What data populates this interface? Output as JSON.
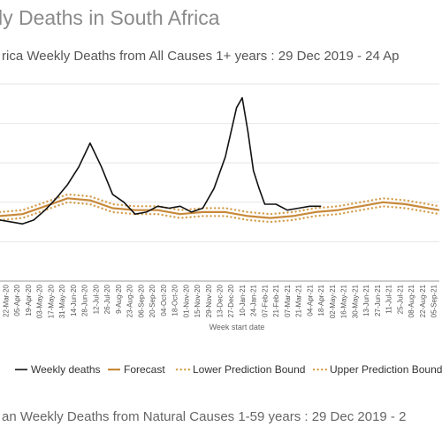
{
  "page": {
    "title": "ly Deaths in South Africa",
    "footer_subtitle": "an Weekly Deaths from Natural Causes 1-59 years : 29 Dec 2019 - 2"
  },
  "chart_data": {
    "type": "line",
    "title": "rica Weekly Deaths from All Causes 1+ years : 29 Dec 2019 - 24 Ap",
    "xlabel": "Week start date",
    "ylabel": "",
    "x_range": [
      "2020-03-15",
      "2021-09-12"
    ],
    "ylim": [
      0,
      1
    ],
    "grid": true,
    "legend_position": "bottom",
    "colors": {
      "weekly": "#111111",
      "forecast": "#c8893a",
      "bounds": "#d4a050",
      "grid": "#e6e6e6",
      "axis": "#999999"
    },
    "tick_labels": [
      "22-Mar-20",
      "05-Apr-20",
      "19-Apr-20",
      "03-May-20",
      "17-May-20",
      "31-May-20",
      "14-Jun-20",
      "28-Jun-20",
      "12-Jul-20",
      "26-Jul-20",
      "9-Aug-20",
      "23-Aug-20",
      "06-Sep-20",
      "20-Sep-20",
      "04-Oct-20",
      "18-Oct-20",
      "01-Nov-20",
      "15-Nov-20",
      "29-Nov-20",
      "13-Dec-20",
      "27-Dec-20",
      "10-Jan-21",
      "24-Jan-21",
      "07-Feb-21",
      "21-Feb-21",
      "07-Mar-21",
      "21-Mar-21",
      "04-Apr-21",
      "18-Apr-21",
      "02-May-21",
      "16-May-21",
      "30-May-21",
      "13-Jun-21",
      "27-Jun-21",
      "11-Jul-21",
      "25-Jul-21",
      "08-Aug-21",
      "22-Aug-21",
      "05-Sep-21"
    ],
    "series": [
      {
        "name": "Weekly deaths",
        "style": "solid",
        "x": [
          "2020-03-15",
          "2020-03-29",
          "2020-04-12",
          "2020-04-26",
          "2020-05-10",
          "2020-05-24",
          "2020-06-07",
          "2020-06-21",
          "2020-07-05",
          "2020-07-19",
          "2020-08-02",
          "2020-08-16",
          "2020-08-30",
          "2020-09-13",
          "2020-09-27",
          "2020-10-11",
          "2020-10-25",
          "2020-11-08",
          "2020-11-22",
          "2020-12-06",
          "2020-12-20",
          "2021-01-03",
          "2021-01-10",
          "2021-01-17",
          "2021-01-24",
          "2021-01-31",
          "2021-02-07",
          "2021-02-21",
          "2021-03-07",
          "2021-03-21",
          "2021-04-04",
          "2021-04-18"
        ],
        "y": [
          0.31,
          0.3,
          0.29,
          0.31,
          0.36,
          0.42,
          0.49,
          0.58,
          0.7,
          0.58,
          0.44,
          0.4,
          0.34,
          0.35,
          0.38,
          0.37,
          0.38,
          0.35,
          0.37,
          0.47,
          0.63,
          0.88,
          0.93,
          0.76,
          0.56,
          0.47,
          0.39,
          0.39,
          0.36,
          0.37,
          0.38,
          0.38
        ]
      },
      {
        "name": "Forecast",
        "style": "solid",
        "x": [
          "2020-03-15",
          "2020-04-12",
          "2020-05-10",
          "2020-06-07",
          "2020-07-05",
          "2020-08-02",
          "2020-08-30",
          "2020-09-27",
          "2020-10-25",
          "2020-11-22",
          "2020-12-20",
          "2021-01-17",
          "2021-02-14",
          "2021-03-14",
          "2021-04-11",
          "2021-05-09",
          "2021-06-06",
          "2021-07-04",
          "2021-08-01",
          "2021-08-29",
          "2021-09-12"
        ],
        "y": [
          0.33,
          0.34,
          0.38,
          0.42,
          0.41,
          0.37,
          0.36,
          0.36,
          0.34,
          0.35,
          0.35,
          0.33,
          0.32,
          0.33,
          0.35,
          0.36,
          0.38,
          0.4,
          0.39,
          0.37,
          0.36
        ]
      },
      {
        "name": "Lower Prediction Bound",
        "style": "dotted",
        "x": [
          "2020-03-15",
          "2020-04-12",
          "2020-05-10",
          "2020-06-07",
          "2020-07-05",
          "2020-08-02",
          "2020-08-30",
          "2020-09-27",
          "2020-10-25",
          "2020-11-22",
          "2020-12-20",
          "2021-01-17",
          "2021-02-14",
          "2021-03-14",
          "2021-04-11",
          "2021-05-09",
          "2021-06-06",
          "2021-07-04",
          "2021-08-01",
          "2021-08-29",
          "2021-09-12"
        ],
        "y": [
          0.31,
          0.32,
          0.36,
          0.4,
          0.39,
          0.35,
          0.34,
          0.34,
          0.32,
          0.33,
          0.33,
          0.31,
          0.3,
          0.31,
          0.33,
          0.34,
          0.36,
          0.38,
          0.37,
          0.35,
          0.34
        ]
      },
      {
        "name": "Upper Prediction Bound",
        "style": "dotted",
        "x": [
          "2020-03-15",
          "2020-04-12",
          "2020-05-10",
          "2020-06-07",
          "2020-07-05",
          "2020-08-02",
          "2020-08-30",
          "2020-09-27",
          "2020-10-25",
          "2020-11-22",
          "2020-12-20",
          "2021-01-17",
          "2021-02-14",
          "2021-03-14",
          "2021-04-11",
          "2021-05-09",
          "2021-06-06",
          "2021-07-04",
          "2021-08-01",
          "2021-08-29",
          "2021-09-12"
        ],
        "y": [
          0.35,
          0.36,
          0.4,
          0.44,
          0.43,
          0.39,
          0.38,
          0.38,
          0.36,
          0.37,
          0.37,
          0.35,
          0.34,
          0.35,
          0.37,
          0.38,
          0.4,
          0.42,
          0.41,
          0.39,
          0.38
        ]
      }
    ]
  }
}
